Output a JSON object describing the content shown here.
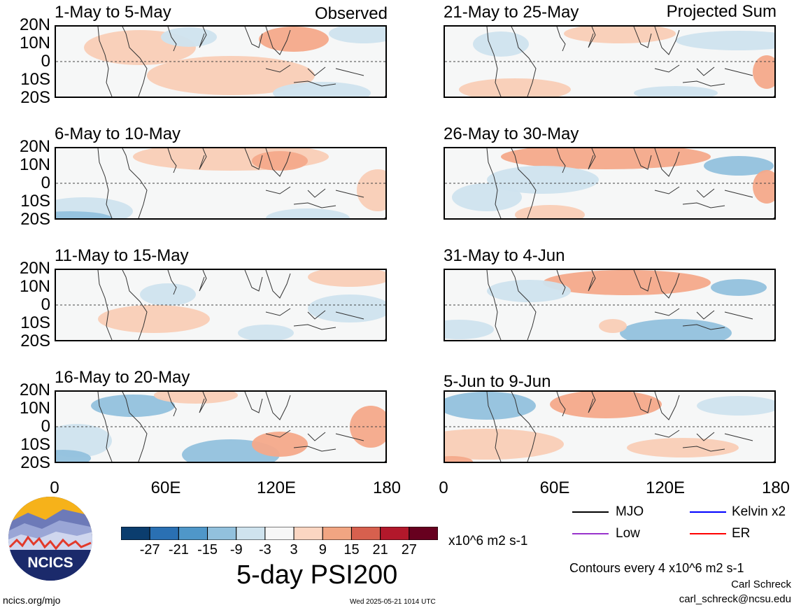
{
  "observed_label": "Observed",
  "projected_label": "Projected Sum",
  "panels_left": [
    {
      "title": "1-May to 5-May"
    },
    {
      "title": "6-May to 10-May"
    },
    {
      "title": "11-May to 15-May"
    },
    {
      "title": "16-May to 20-May"
    }
  ],
  "panels_right": [
    {
      "title": "21-May to 25-May"
    },
    {
      "title": "26-May to 30-May"
    },
    {
      "title": "31-May to 4-Jun"
    },
    {
      "title": "5-Jun to 9-Jun"
    }
  ],
  "y_ticks": [
    "20N",
    "10N",
    "0",
    "10S",
    "20S"
  ],
  "x_ticks": [
    "0",
    "60E",
    "120E",
    "180"
  ],
  "colorbar": {
    "labels": [
      "-27",
      "-21",
      "-15",
      "-9",
      "-3",
      "3",
      "9",
      "15",
      "21",
      "27"
    ],
    "colors": [
      "#0b3d6e",
      "#2a70b3",
      "#4f97c9",
      "#92c1dd",
      "#cfe3ee",
      "#f7f7f7",
      "#fbd6c2",
      "#f1a582",
      "#d7604e",
      "#b2182b",
      "#67001f"
    ],
    "units": "x10^6 m2 s-1",
    "title": "5-day PSI200"
  },
  "legend": [
    {
      "label": "MJO",
      "color": "#000000"
    },
    {
      "label": "Kelvin x2",
      "color": "#0000ff"
    },
    {
      "label": "Low",
      "color": "#9933cc"
    },
    {
      "label": "ER",
      "color": "#ff0000"
    }
  ],
  "contour_note": "Contours every 4 x10^6 m2 s-1",
  "author": "Carl Schreck",
  "email": "carl_schreck@ncsu.edu",
  "site": "ncics.org/mjo",
  "timestamp": "Wed 2025-05-21 1014 UTC",
  "logo_text": "NCICS"
}
